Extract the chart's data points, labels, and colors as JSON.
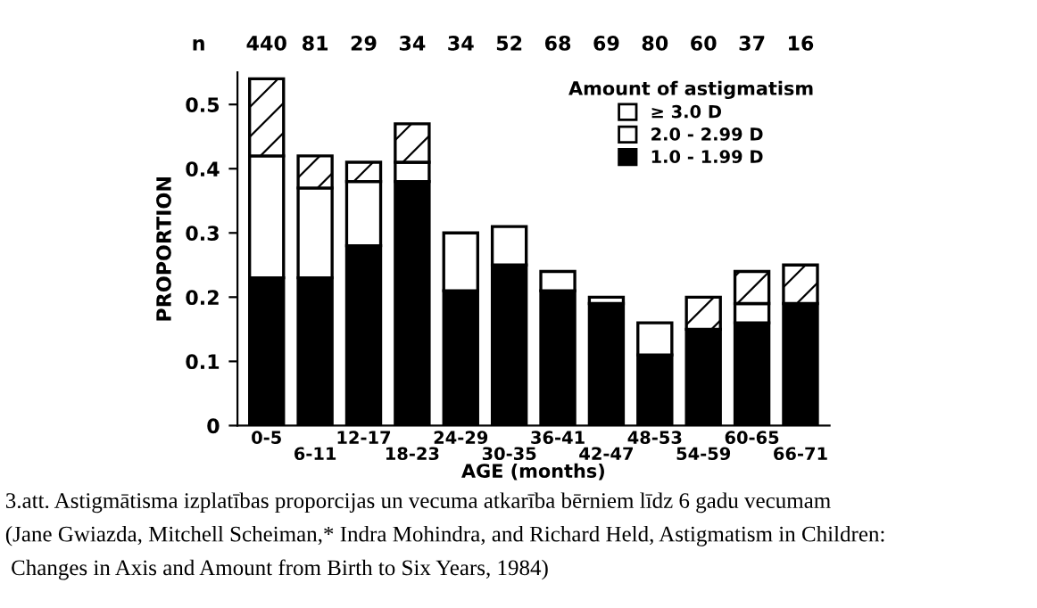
{
  "chart_data": {
    "type": "bar",
    "stacked": true,
    "categories": [
      "0-5",
      "6-11",
      "12-17",
      "18-23",
      "24-29",
      "30-35",
      "36-41",
      "42-47",
      "48-53",
      "54-59",
      "60-65",
      "66-71"
    ],
    "series": [
      {
        "name": "1.0 - 1.99 D",
        "color": "#000000",
        "values": [
          0.23,
          0.23,
          0.28,
          0.38,
          0.21,
          0.25,
          0.21,
          0.19,
          0.11,
          0.15,
          0.16,
          0.19
        ]
      },
      {
        "name": "2.0 - 2.99 D",
        "color": "#ffffff",
        "values": [
          0.19,
          0.14,
          0.1,
          0.03,
          0.09,
          0.06,
          0.03,
          0.01,
          0.05,
          null,
          0.03,
          null
        ]
      },
      {
        "name": "≥ 3.0 D",
        "color": "#ffffff",
        "values": [
          0.12,
          0.05,
          0.03,
          0.06,
          null,
          null,
          null,
          null,
          null,
          0.05,
          0.05,
          0.06
        ]
      }
    ],
    "ylim": [
      0,
      0.55
    ],
    "yticks": [
      0,
      0.1,
      0.2,
      0.3,
      0.4,
      0.5
    ],
    "xlabel": "AGE (months)",
    "ylabel": "PROPORTION",
    "legend_title": "Amount of astigmatism",
    "legend": "top right",
    "grid": false,
    "annotations": [
      "n",
      "440",
      "81",
      "29",
      "34",
      "34",
      "52",
      "68",
      "69",
      "80",
      "60",
      "37",
      "16",
      "3.att. Astigmātisma izplatības proporcijas un vecuma atkarība bērniem līdz 6 gadu vecumam",
      "(Jane Gwiazda, Mitchell Scheiman,* Indra Mohindra, and Richard Held, Astigmatism in Children:",
      " Changes in Axis and Amount from Birth to Six Years, 1984)"
    ]
  }
}
